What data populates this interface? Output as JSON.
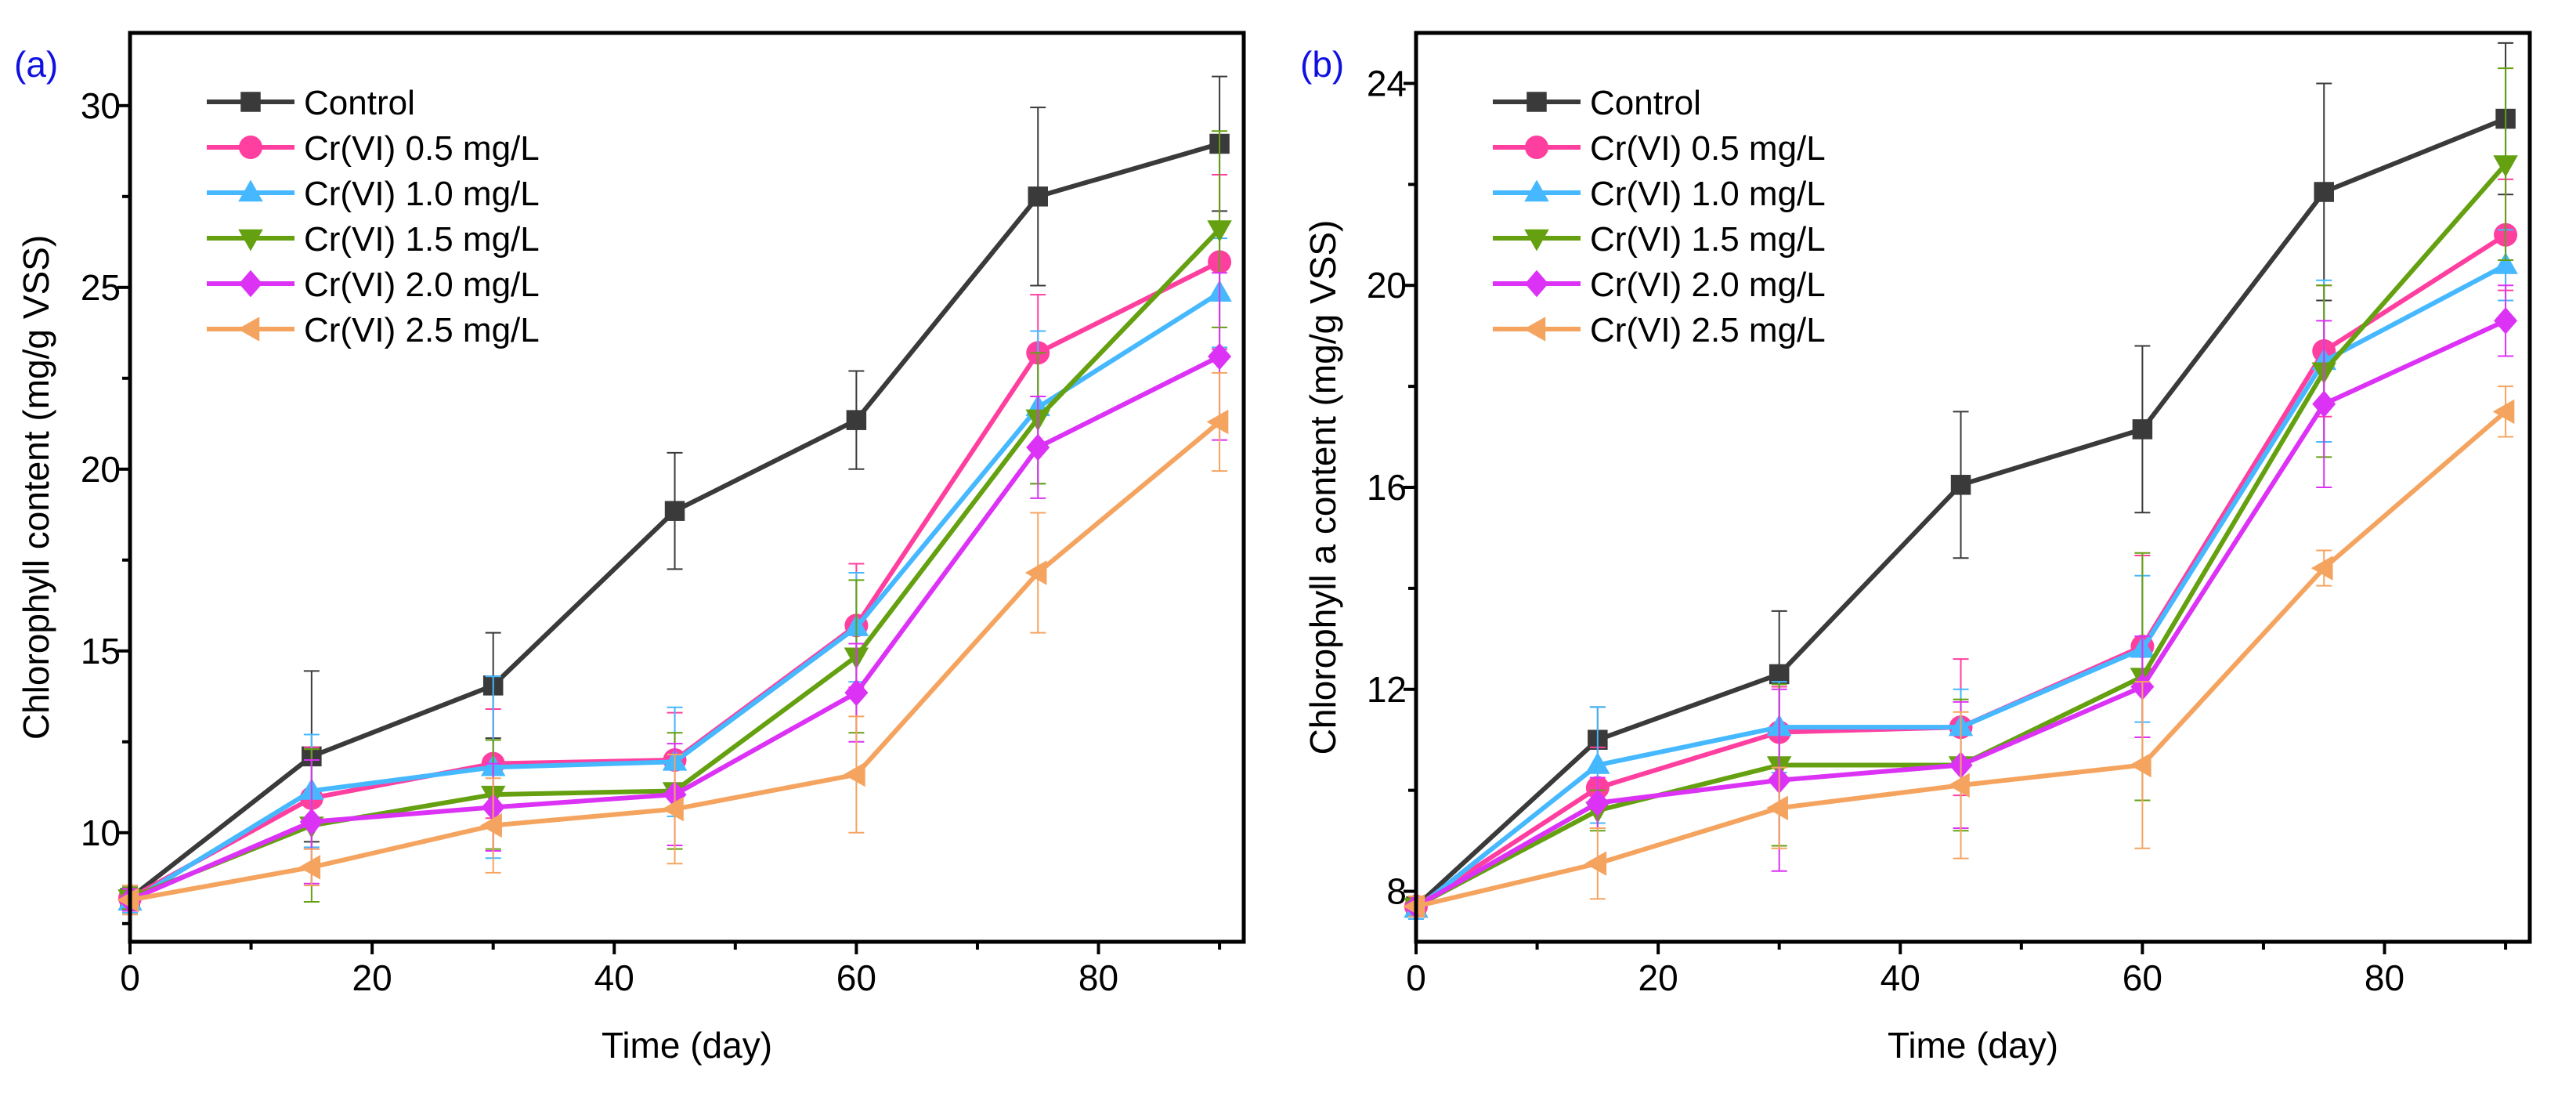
{
  "colors": {
    "Control": "#3a3a3a",
    "Cr(VI) 0.5 mg/L": "#ff3fa0",
    "Cr(VI) 1.0 mg/L": "#45b8ff",
    "Cr(VI) 1.5 mg/L": "#64a010",
    "Cr(VI) 2.0 mg/L": "#dc32f5",
    "Cr(VI) 2.5 mg/L": "#f5a460",
    "panel_label": "#1010e0"
  },
  "chart_data": [
    {
      "type": "line",
      "panel_label": "(a)",
      "xlabel": "Time (day)",
      "ylabel": "Chlorophyll content (mg/g VSS)",
      "xlim": [
        0,
        92
      ],
      "ylim": [
        7,
        32
      ],
      "xticks": [
        0,
        20,
        40,
        60,
        80
      ],
      "yticks": [
        10,
        15,
        20,
        25,
        30
      ],
      "grid": false,
      "legend": "top-left",
      "markers": [
        "square",
        "circle",
        "triangle-up",
        "triangle-down",
        "diamond",
        "triangle-left"
      ],
      "x": [
        0,
        15,
        30,
        45,
        60,
        75,
        90
      ],
      "series": [
        {
          "name": "Control",
          "values": [
            8.2,
            12.1,
            14.05,
            18.85,
            21.35,
            27.5,
            28.95
          ],
          "errors": [
            0.3,
            2.35,
            1.45,
            1.6,
            1.35,
            2.45,
            1.85
          ]
        },
        {
          "name": "Cr(VI) 0.5 mg/L",
          "values": [
            8.2,
            10.95,
            11.9,
            12.0,
            15.7,
            23.2,
            25.7
          ],
          "errors": [
            0.3,
            1.4,
            1.5,
            1.3,
            1.7,
            1.6,
            2.4
          ]
        },
        {
          "name": "Cr(VI) 1.0 mg/L",
          "values": [
            8.1,
            11.15,
            11.8,
            11.95,
            15.65,
            21.7,
            24.85
          ],
          "errors": [
            0.3,
            1.55,
            2.5,
            1.5,
            1.5,
            2.1,
            1.5
          ]
        },
        {
          "name": "Cr(VI) 1.5 mg/L",
          "values": [
            8.2,
            10.2,
            11.05,
            11.15,
            14.85,
            21.4,
            26.6
          ],
          "errors": [
            0.3,
            2.1,
            1.5,
            1.6,
            2.1,
            1.8,
            2.7
          ]
        },
        {
          "name": "Cr(VI) 2.0 mg/L",
          "values": [
            8.15,
            10.3,
            10.7,
            11.05,
            13.85,
            20.6,
            23.1
          ],
          "errors": [
            0.3,
            1.7,
            1.2,
            1.4,
            1.35,
            1.4,
            2.3
          ]
        },
        {
          "name": "Cr(VI) 2.5 mg/L",
          "values": [
            8.15,
            9.05,
            10.2,
            10.65,
            11.6,
            17.15,
            21.3
          ],
          "errors": [
            0.4,
            0.5,
            1.3,
            1.5,
            1.6,
            1.65,
            1.35
          ]
        }
      ]
    },
    {
      "type": "line",
      "panel_label": "(b)",
      "xlabel": "Time (day)",
      "ylabel": "Chlorophyll a content (mg/g VSS)",
      "xlim": [
        0,
        92
      ],
      "ylim": [
        7,
        25
      ],
      "xticks": [
        0,
        20,
        40,
        60,
        80
      ],
      "yticks": [
        8,
        12,
        16,
        20,
        24
      ],
      "grid": false,
      "legend": "top-left",
      "markers": [
        "square",
        "circle",
        "triangle-up",
        "triangle-down",
        "diamond",
        "triangle-left"
      ],
      "x": [
        0,
        15,
        30,
        45,
        60,
        75,
        90
      ],
      "series": [
        {
          "name": "Control",
          "values": [
            7.7,
            11.0,
            12.3,
            16.05,
            17.15,
            21.85,
            23.3
          ],
          "errors": [
            0.2,
            0.65,
            1.25,
            1.45,
            1.65,
            2.15,
            1.5
          ]
        },
        {
          "name": "Cr(VI) 0.5 mg/L",
          "values": [
            7.7,
            10.05,
            11.15,
            11.25,
            12.85,
            18.7,
            21.0
          ],
          "errors": [
            0.2,
            0.8,
            0.9,
            1.35,
            1.8,
            1.3,
            1.1
          ]
        },
        {
          "name": "Cr(VI) 1.0 mg/L",
          "values": [
            7.65,
            10.5,
            11.25,
            11.25,
            12.8,
            18.5,
            20.4
          ],
          "errors": [
            0.2,
            1.15,
            0.9,
            0.75,
            1.45,
            1.6,
            0.7
          ]
        },
        {
          "name": "Cr(VI) 1.5 mg/L",
          "values": [
            7.7,
            9.6,
            10.5,
            10.5,
            12.25,
            18.3,
            22.4
          ],
          "errors": [
            0.2,
            0.4,
            1.6,
            1.3,
            2.45,
            1.7,
            1.9
          ]
        },
        {
          "name": "Cr(VI) 2.0 mg/L",
          "values": [
            7.7,
            9.75,
            10.2,
            10.5,
            12.05,
            17.65,
            19.3
          ],
          "errors": [
            0.2,
            0.5,
            1.8,
            1.25,
            1.0,
            1.65,
            0.7
          ]
        },
        {
          "name": "Cr(VI) 2.5 mg/L",
          "values": [
            7.7,
            8.55,
            9.65,
            10.1,
            10.5,
            14.4,
            17.5
          ],
          "errors": [
            0.2,
            0.7,
            0.8,
            1.45,
            1.65,
            0.35,
            0.5
          ]
        }
      ]
    }
  ]
}
